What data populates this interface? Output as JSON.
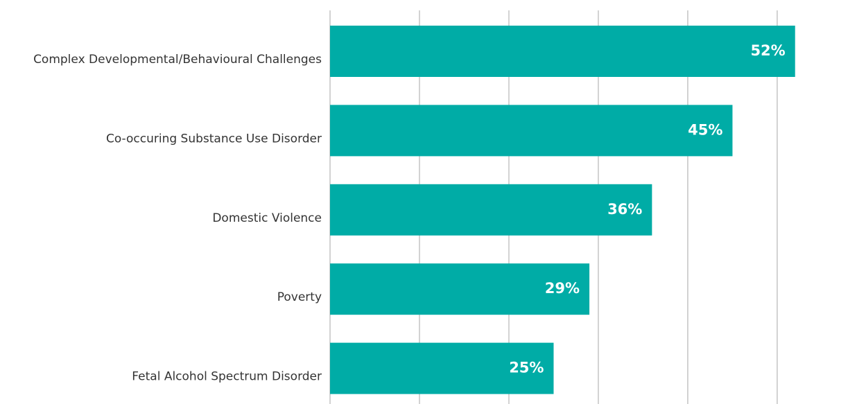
{
  "chart_data": {
    "type": "bar",
    "orientation": "horizontal",
    "categories": [
      "Complex Developmental/Behavioural Challenges",
      "Co-occuring Substance Use Disorder",
      "Domestic Violence",
      "Poverty",
      "Fetal Alcohol Spectrum Disorder"
    ],
    "values": [
      52,
      45,
      36,
      29,
      25
    ],
    "value_labels": [
      "52%",
      "45%",
      "36%",
      "29%",
      "25%"
    ],
    "color": "#00aca6",
    "xlim": [
      0,
      59
    ],
    "xticks": [
      0,
      10,
      20,
      30,
      40,
      50
    ],
    "grid": true
  }
}
